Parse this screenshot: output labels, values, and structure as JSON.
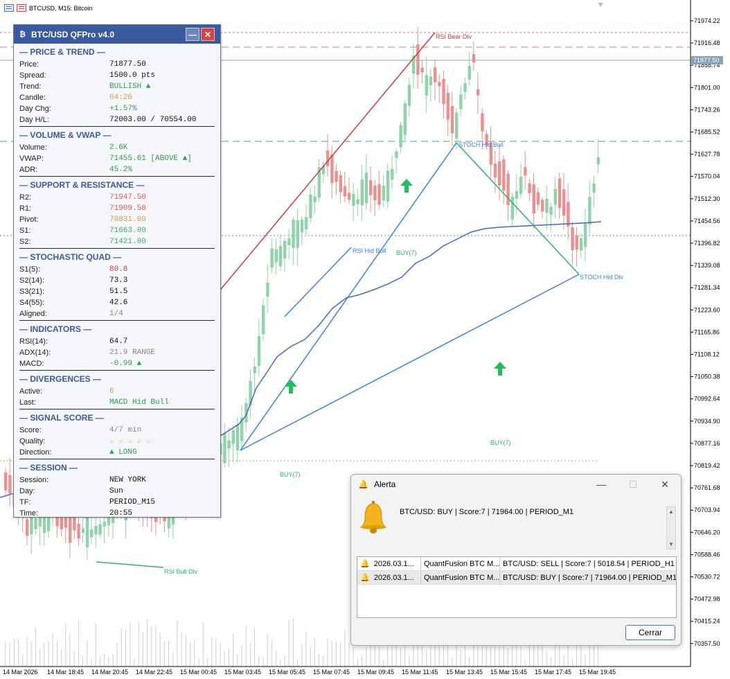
{
  "window": {
    "symbol_title": "BTCUSD, M15:  Bitcoin"
  },
  "price_axis": {
    "labels": [
      "71974.22",
      "71916.48",
      "71858.74",
      "71801.00",
      "71743.26",
      "71685.52",
      "71627.78",
      "71570.04",
      "71512.30",
      "71454.56",
      "71396.82",
      "71339.08",
      "71281.34",
      "71223.60",
      "71165.86",
      "71108.12",
      "71050.38",
      "70992.64",
      "70934.90",
      "70877.16",
      "70819.42",
      "70761.68",
      "70703.94",
      "70646.20",
      "70588.46",
      "70530.72",
      "70472.98",
      "70415.24",
      "70357.50"
    ],
    "current_price": "71877.50"
  },
  "time_axis": {
    "labels": [
      "14 Mar 2026",
      "14 Mar 18:45",
      "14 Mar 20:45",
      "14 Mar 22:45",
      "15 Mar 00:45",
      "15 Mar 03:45",
      "15 Mar 05:45",
      "15 Mar 07:45",
      "15 Mar 09:45",
      "15 Mar 11:45",
      "15 Mar 13:45",
      "15 Mar 15:45",
      "15 Mar 17:45",
      "15 Mar 19:45"
    ]
  },
  "annotations": {
    "rsi_bear_div": "RSI Bear Div",
    "stoch_hid_bull": "STOCH Hid Bull",
    "rsi_hid_bull": "RSI Hid Bull",
    "buy_1": "BUY(7)",
    "buy_2": "BUY(7)",
    "buy_3": "BUY(7)",
    "rsi_bull_div": "RSI Bull Div",
    "overlap_label": "STOCH Hid Div"
  },
  "panel": {
    "logo": "₿",
    "title": "BTC/USD QFPro v4.0",
    "minimize": "—",
    "close": "✕",
    "sections": [
      {
        "title": "— PRICE & TREND —",
        "rows": [
          {
            "k": "Price:",
            "v": "71877.50",
            "c": "#111111"
          },
          {
            "k": "Spread:",
            "v": "1500.0 pts",
            "c": "#111111"
          },
          {
            "k": "Trend:",
            "v": "BULLISH ▲",
            "c": "#2e9e4f"
          },
          {
            "k": "Candle:",
            "v": "04:26",
            "c": "#c9a046"
          },
          {
            "k": "Day Chg:",
            "v": "+1.57%",
            "c": "#2e9e4f"
          },
          {
            "k": "Day H/L:",
            "v": "72003.00 / 70554.00",
            "c": "#111111"
          }
        ]
      },
      {
        "title": "— VOLUME & VWAP —",
        "rows": [
          {
            "k": "Volume:",
            "v": "2.6K",
            "c": "#2e9e4f"
          },
          {
            "k": "VWAP:",
            "v": "71455.61 [ABOVE ▲]",
            "c": "#2e9e4f"
          },
          {
            "k": "ADR:",
            "v": "45.2%",
            "c": "#2e9e4f"
          }
        ]
      },
      {
        "title": "— SUPPORT & RESISTANCE —",
        "rows": [
          {
            "k": "R2:",
            "v": "71947.50",
            "c": "#d06060"
          },
          {
            "k": "R1:",
            "v": "71909.50",
            "c": "#d06060"
          },
          {
            "k": "Pivot:",
            "v": "70831.00",
            "c": "#c9a046"
          },
          {
            "k": "S1:",
            "v": "71663.00",
            "c": "#3dae6b"
          },
          {
            "k": "S2:",
            "v": "71421.00",
            "c": "#3dae6b"
          }
        ]
      },
      {
        "title": "— STOCHASTIC QUAD —",
        "rows": [
          {
            "k": "S1(5):",
            "v": "80.8",
            "c": "#c23b3b"
          },
          {
            "k": "S2(14):",
            "v": "73.3",
            "c": "#111111"
          },
          {
            "k": "S3(21):",
            "v": "51.5",
            "c": "#111111"
          },
          {
            "k": "S4(55):",
            "v": "42.6",
            "c": "#111111"
          },
          {
            "k": "Aligned:",
            "v": "1/4",
            "c": "#888888"
          }
        ]
      },
      {
        "title": "— INDICATORS —",
        "rows": [
          {
            "k": "RSI(14):",
            "v": "64.7",
            "c": "#111111"
          },
          {
            "k": "ADX(14):",
            "v": "21.9 RANGE",
            "c": "#888888"
          },
          {
            "k": "MACD:",
            "v": "-0.99 ▲",
            "c": "#2e9e4f"
          }
        ]
      },
      {
        "title": "— DIVERGENCES —",
        "rows": [
          {
            "k": "Active:",
            "v": "6",
            "c": "#c9a046"
          },
          {
            "k": "Last:",
            "v": "MACD Hid Bull",
            "c": "#2e9e4f"
          }
        ]
      },
      {
        "title": "— SIGNAL SCORE —",
        "rows": [
          {
            "k": "Score:",
            "v": "4/7 min",
            "c": "#888888"
          },
          {
            "k": "Quality:",
            "v": "☆ ☆ ☆ ☆ ☆",
            "c": "#c9a046"
          },
          {
            "k": "Direction:",
            "v": "▲ LONG",
            "c": "#2e9e4f"
          }
        ]
      },
      {
        "title": "— SESSION —",
        "rows": [
          {
            "k": "Session:",
            "v": "NEW YORK",
            "c": "#111111"
          },
          {
            "k": "Day:",
            "v": "Sun",
            "c": "#111111"
          },
          {
            "k": "TF:",
            "v": "PERIOD_M15",
            "c": "#111111"
          },
          {
            "k": "Time:",
            "v": "20:55",
            "c": "#111111"
          }
        ]
      }
    ]
  },
  "alert": {
    "title": "Alerta",
    "minimize": "—",
    "maximize": "☐",
    "close": "✕",
    "message": "BTC/USD: BUY | Score:7 | 71964.00 | PERIOD_M1",
    "rows": [
      {
        "time": "2026.03.1...",
        "source": "QuantFusion BTC M...",
        "text": "BTC/USD: SELL | Score:7 | 5018.54 | PERIOD_H1"
      },
      {
        "time": "2026.03.1...",
        "source": "QuantFusion BTC M...",
        "text": "BTC/USD: BUY | Score:7 | 71964.00 | PERIOD_M1"
      }
    ],
    "close_button": "Cerrar"
  },
  "colors": {
    "bull": "#8fd3a8",
    "bear": "#eb8f8f",
    "trend_blue": "#3b82e0",
    "trend_red": "#d23a3a",
    "trend_green": "#2db36a",
    "vwap": "#4a63c8",
    "panel_header": "#3a5aa0"
  }
}
